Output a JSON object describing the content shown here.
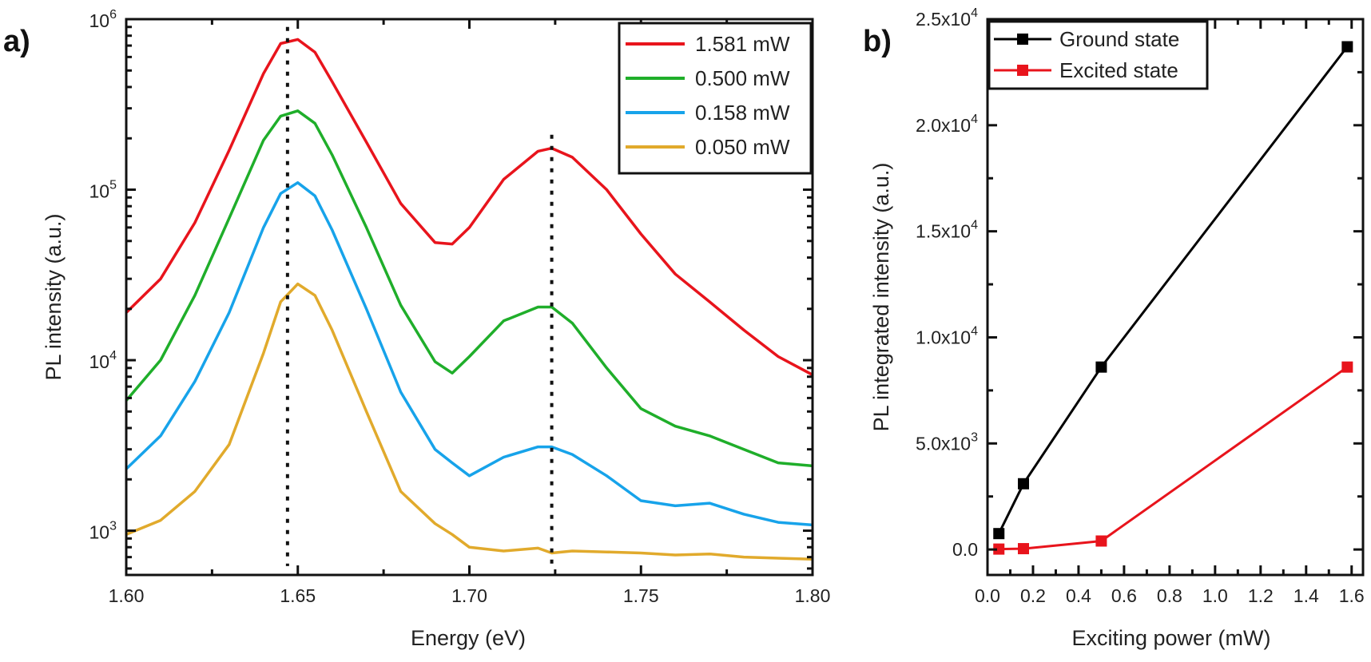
{
  "chart_data": [
    {
      "panel": "a)",
      "type": "line",
      "title": "",
      "xlabel": "Energy (eV)",
      "ylabel": "PL intensity (a.u.)",
      "xlim": [
        1.6,
        1.8
      ],
      "ylim": [
        550,
        1000000
      ],
      "yscale": "log",
      "xticks": [
        1.6,
        1.65,
        1.7,
        1.75,
        1.8
      ],
      "xtick_labels": [
        "1.60",
        "1.65",
        "1.70",
        "1.75",
        "1.80"
      ],
      "yticks": [
        1000,
        10000,
        100000,
        1000000
      ],
      "ytick_labels": [
        {
          "base": "10",
          "exp": "3"
        },
        {
          "base": "10",
          "exp": "4"
        },
        {
          "base": "10",
          "exp": "5"
        },
        {
          "base": "10",
          "exp": "6"
        }
      ],
      "legend_position": "top-right",
      "markers": {
        "ground_state_energy": 1.647,
        "excited_state_energy": 1.724,
        "style": "dotted"
      },
      "series": [
        {
          "name": "1.581 mW",
          "color": "#e8141c",
          "x": [
            1.6,
            1.61,
            1.62,
            1.63,
            1.64,
            1.645,
            1.65,
            1.655,
            1.66,
            1.67,
            1.68,
            1.69,
            1.695,
            1.7,
            1.71,
            1.72,
            1.724,
            1.73,
            1.74,
            1.75,
            1.76,
            1.77,
            1.78,
            1.79,
            1.8
          ],
          "y": [
            19000,
            30000,
            64000,
            170000,
            480000,
            720000,
            760000,
            640000,
            430000,
            190000,
            83000,
            49000,
            48000,
            60000,
            115000,
            168000,
            175000,
            155000,
            100000,
            55000,
            32000,
            22000,
            15000,
            10500,
            8200
          ]
        },
        {
          "name": "0.500 mW",
          "color": "#1fae2a",
          "x": [
            1.6,
            1.61,
            1.62,
            1.63,
            1.64,
            1.645,
            1.65,
            1.655,
            1.66,
            1.67,
            1.68,
            1.69,
            1.695,
            1.7,
            1.71,
            1.72,
            1.724,
            1.73,
            1.74,
            1.75,
            1.76,
            1.77,
            1.78,
            1.79,
            1.8
          ],
          "y": [
            5800,
            10000,
            24000,
            68000,
            195000,
            270000,
            290000,
            245000,
            160000,
            60000,
            21000,
            9800,
            8400,
            10500,
            17000,
            20500,
            20500,
            16500,
            9000,
            5200,
            4100,
            3600,
            3000,
            2500,
            2400
          ]
        },
        {
          "name": "0.158 mW",
          "color": "#17a3ea",
          "x": [
            1.6,
            1.61,
            1.62,
            1.63,
            1.64,
            1.645,
            1.65,
            1.655,
            1.66,
            1.67,
            1.68,
            1.69,
            1.695,
            1.7,
            1.71,
            1.72,
            1.724,
            1.73,
            1.74,
            1.75,
            1.76,
            1.77,
            1.78,
            1.79,
            1.8
          ],
          "y": [
            2300,
            3600,
            7500,
            19000,
            60000,
            95000,
            110000,
            92000,
            58000,
            20000,
            6500,
            3000,
            2500,
            2100,
            2700,
            3100,
            3100,
            2800,
            2100,
            1500,
            1400,
            1450,
            1250,
            1120,
            1080
          ]
        },
        {
          "name": "0.050 mW",
          "color": "#e1aa2c",
          "x": [
            1.6,
            1.61,
            1.62,
            1.63,
            1.64,
            1.645,
            1.65,
            1.655,
            1.66,
            1.67,
            1.68,
            1.69,
            1.695,
            1.7,
            1.71,
            1.72,
            1.724,
            1.73,
            1.74,
            1.75,
            1.76,
            1.77,
            1.78,
            1.79,
            1.8
          ],
          "y": [
            950,
            1150,
            1700,
            3200,
            11000,
            22000,
            28000,
            24000,
            15000,
            5000,
            1700,
            1100,
            950,
            800,
            760,
            790,
            740,
            760,
            750,
            740,
            720,
            730,
            700,
            690,
            680
          ]
        }
      ]
    },
    {
      "panel": "b)",
      "type": "line",
      "title": "",
      "xlabel": "Exciting power (mW)",
      "ylabel": "PL integrated intensity (a.u.)",
      "xlim": [
        0.0,
        1.65
      ],
      "ylim": [
        -1200,
        25000
      ],
      "xticks": [
        0.0,
        0.2,
        0.4,
        0.6,
        0.8,
        1.0,
        1.2,
        1.4,
        1.6
      ],
      "xtick_labels": [
        "0.0",
        "0.2",
        "0.4",
        "0.6",
        "0.8",
        "1.0",
        "1.2",
        "1.4",
        "1.6"
      ],
      "yticks": [
        0,
        5000,
        10000,
        15000,
        20000,
        25000
      ],
      "ytick_labels": [
        "0.0",
        "5.0x10",
        "1.0x10",
        "1.5x10",
        "2.0x10",
        "2.5x10"
      ],
      "ytick_exponents": [
        "",
        "3",
        "4",
        "4",
        "4",
        "4"
      ],
      "legend_position": "top-left",
      "x": [
        0.05,
        0.158,
        0.5,
        1.581
      ],
      "series": [
        {
          "name": "Ground state",
          "color": "#000000",
          "marker": "square",
          "values": [
            750,
            3100,
            8600,
            23700
          ]
        },
        {
          "name": "Excited state",
          "color": "#e8141c",
          "marker": "square",
          "values": [
            20,
            40,
            400,
            8600
          ]
        }
      ]
    }
  ]
}
